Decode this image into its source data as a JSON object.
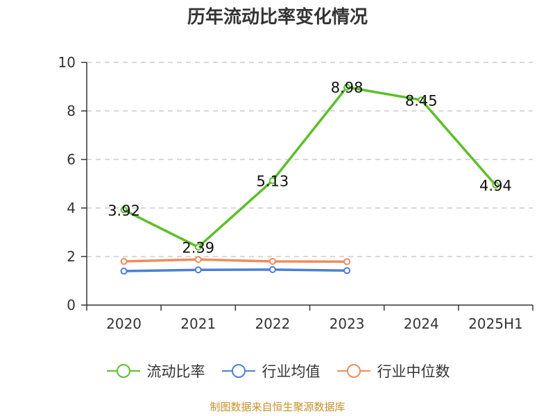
{
  "title": "历年流动比率变化情况",
  "source": "制图数据来自恒生聚源数据库",
  "chart_data": {
    "type": "line",
    "categories": [
      "2020",
      "2021",
      "2022",
      "2023",
      "2024",
      "2025H1"
    ],
    "ylim": [
      0,
      10
    ],
    "yticks": [
      0,
      2,
      4,
      6,
      8,
      10
    ],
    "grid": true,
    "legend_position": "bottom",
    "series": [
      {
        "name": "流动比率",
        "color": "#5cbf2a",
        "values": [
          3.92,
          2.39,
          5.13,
          8.98,
          8.45,
          4.94
        ],
        "labels": [
          "3.92",
          "2.39",
          "5.13",
          "8.98",
          "8.45",
          "4.94"
        ]
      },
      {
        "name": "行业均值",
        "color": "#4a7fd6",
        "values": [
          1.4,
          1.45,
          1.46,
          1.42,
          null,
          null
        ]
      },
      {
        "name": "行业中位数",
        "color": "#f08c5a",
        "values": [
          1.8,
          1.88,
          1.8,
          1.79,
          null,
          null
        ]
      }
    ]
  }
}
